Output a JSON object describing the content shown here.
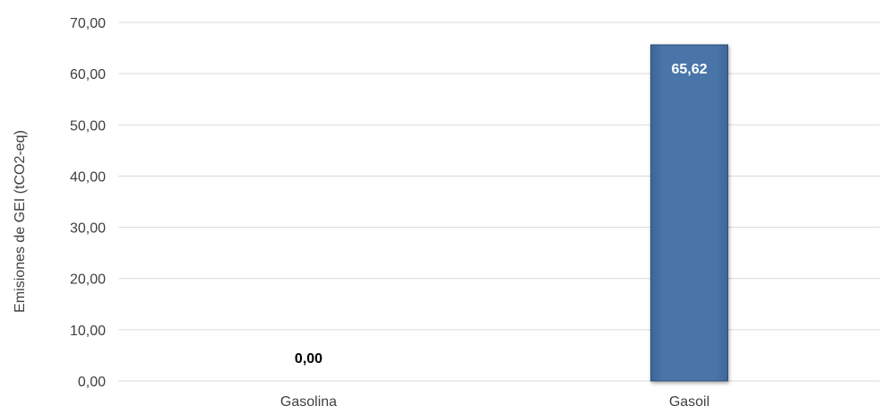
{
  "chart_data": {
    "type": "bar",
    "categories": [
      "Gasolina",
      "Gasoil"
    ],
    "values": [
      0.0,
      65.62
    ],
    "value_labels": [
      "0,00",
      "65,62"
    ],
    "ylabel": "Emisiones de GEI (tCO2-eq)",
    "xlabel": "",
    "title": "",
    "ylim": [
      0,
      70
    ],
    "yticks": [
      "0,00",
      "10,00",
      "20,00",
      "30,00",
      "40,00",
      "50,00",
      "60,00",
      "70,00"
    ],
    "grid": true,
    "legend": "none",
    "bar_color": "#4a72a6",
    "bar_edge_color": "#2f4f7a",
    "label_color_inside": "#ffffff",
    "label_color_outside": "#000000"
  }
}
